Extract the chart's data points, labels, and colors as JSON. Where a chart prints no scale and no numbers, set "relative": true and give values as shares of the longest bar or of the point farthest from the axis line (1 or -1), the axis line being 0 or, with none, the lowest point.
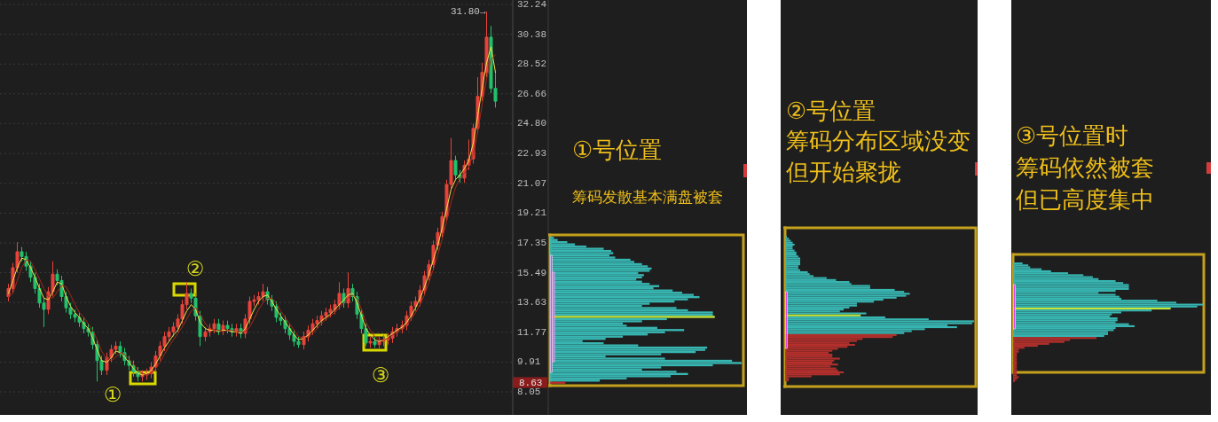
{
  "chart_data": [
    {
      "type": "candlestick",
      "categories": [
        null,
        null,
        null,
        null,
        null,
        null,
        null,
        null,
        null,
        null,
        null,
        null,
        null,
        null,
        null,
        null,
        null,
        null,
        null,
        null,
        null,
        null,
        null,
        null,
        null,
        null,
        null,
        null,
        null,
        null,
        null,
        null,
        null,
        null,
        null,
        null,
        null,
        null,
        null,
        null,
        null,
        null,
        null,
        null,
        null,
        null,
        null,
        null,
        null,
        null,
        null,
        null,
        null,
        null,
        null,
        null,
        null,
        null,
        null,
        null,
        null,
        null,
        null,
        null,
        null,
        null,
        null,
        null,
        null,
        null,
        null,
        null,
        null,
        null,
        null,
        null,
        null,
        null,
        null,
        null,
        null,
        null,
        null,
        null,
        null,
        null,
        null,
        null,
        null,
        null,
        null,
        null,
        null,
        null,
        null,
        null,
        null,
        null,
        null,
        null,
        null,
        null,
        null,
        null,
        null,
        null,
        null,
        null,
        null,
        null
      ],
      "ohlc": [
        [
          14.0,
          14.8,
          13.7,
          14.5
        ],
        [
          14.5,
          16.1,
          14.2,
          15.8
        ],
        [
          15.8,
          17.4,
          15.5,
          16.8
        ],
        [
          16.8,
          17.1,
          16.2,
          16.5
        ],
        [
          16.5,
          16.8,
          15.6,
          15.9
        ],
        [
          15.9,
          16.2,
          14.9,
          15.2
        ],
        [
          15.2,
          15.5,
          14.2,
          14.5
        ],
        [
          14.5,
          14.8,
          13.3,
          13.6
        ],
        [
          13.6,
          13.9,
          12.1,
          13.2
        ],
        [
          13.2,
          14.6,
          12.9,
          14.3
        ],
        [
          14.3,
          16.2,
          14.0,
          15.4
        ],
        [
          15.4,
          15.7,
          14.7,
          15.0
        ],
        [
          15.0,
          15.3,
          13.7,
          14.0
        ],
        [
          14.0,
          14.3,
          13.0,
          13.3
        ],
        [
          13.3,
          13.6,
          12.6,
          12.9
        ],
        [
          12.9,
          13.2,
          12.4,
          12.7
        ],
        [
          12.7,
          13.0,
          12.1,
          12.4
        ],
        [
          12.4,
          12.7,
          11.7,
          12.0
        ],
        [
          12.0,
          12.3,
          11.5,
          11.8
        ],
        [
          11.8,
          12.1,
          10.7,
          11.0
        ],
        [
          11.0,
          11.3,
          8.7,
          10.0
        ],
        [
          10.0,
          10.3,
          9.1,
          9.4
        ],
        [
          9.4,
          10.5,
          9.1,
          10.2
        ],
        [
          10.2,
          11.0,
          9.9,
          10.7
        ],
        [
          10.7,
          11.2,
          10.4,
          10.9
        ],
        [
          10.9,
          11.2,
          10.2,
          10.5
        ],
        [
          10.5,
          10.8,
          9.7,
          10.0
        ],
        [
          10.0,
          10.3,
          9.4,
          9.7
        ],
        [
          9.7,
          10.0,
          9.0,
          9.3
        ],
        [
          9.3,
          9.6,
          8.7,
          9.0
        ],
        [
          9.0,
          9.4,
          8.7,
          9.1
        ],
        [
          9.1,
          9.5,
          8.8,
          9.2
        ],
        [
          9.2,
          9.9,
          8.9,
          9.6
        ],
        [
          9.6,
          10.6,
          9.3,
          10.3
        ],
        [
          10.3,
          11.2,
          10.0,
          10.9
        ],
        [
          10.9,
          11.8,
          10.6,
          11.5
        ],
        [
          11.5,
          12.1,
          11.2,
          11.8
        ],
        [
          11.8,
          12.4,
          11.5,
          12.1
        ],
        [
          12.1,
          12.9,
          11.8,
          12.6
        ],
        [
          12.6,
          13.8,
          12.3,
          13.5
        ],
        [
          13.5,
          14.9,
          13.2,
          14.2
        ],
        [
          14.2,
          14.5,
          13.6,
          13.9
        ],
        [
          13.9,
          14.2,
          12.5,
          12.8
        ],
        [
          12.8,
          13.1,
          10.9,
          11.5
        ],
        [
          11.5,
          12.1,
          11.2,
          11.8
        ],
        [
          11.8,
          12.3,
          11.5,
          12.0
        ],
        [
          12.0,
          12.6,
          11.7,
          12.3
        ],
        [
          12.3,
          12.6,
          11.6,
          11.9
        ],
        [
          11.9,
          12.5,
          11.6,
          12.2
        ],
        [
          12.2,
          12.5,
          11.7,
          12.0
        ],
        [
          12.0,
          12.3,
          11.5,
          11.8
        ],
        [
          11.8,
          12.3,
          11.5,
          12.0
        ],
        [
          12.0,
          12.3,
          11.4,
          11.7
        ],
        [
          11.7,
          12.9,
          11.4,
          12.6
        ],
        [
          12.6,
          14.0,
          12.3,
          13.7
        ],
        [
          13.7,
          14.1,
          13.4,
          13.8
        ],
        [
          13.8,
          14.3,
          13.5,
          14.0
        ],
        [
          14.0,
          14.8,
          13.7,
          14.3
        ],
        [
          14.3,
          14.6,
          13.5,
          13.8
        ],
        [
          13.8,
          14.1,
          13.1,
          13.4
        ],
        [
          13.4,
          13.7,
          12.4,
          12.7
        ],
        [
          12.7,
          13.0,
          12.2,
          12.5
        ],
        [
          12.5,
          12.8,
          11.7,
          12.0
        ],
        [
          12.0,
          12.3,
          11.3,
          11.6
        ],
        [
          11.6,
          11.9,
          10.9,
          11.2
        ],
        [
          11.2,
          11.5,
          10.8,
          11.0
        ],
        [
          11.0,
          11.8,
          10.7,
          11.5
        ],
        [
          11.5,
          12.2,
          11.2,
          11.9
        ],
        [
          11.9,
          12.6,
          11.6,
          12.3
        ],
        [
          12.3,
          12.8,
          12.0,
          12.5
        ],
        [
          12.5,
          13.1,
          12.2,
          12.8
        ],
        [
          12.8,
          13.3,
          12.5,
          13.0
        ],
        [
          13.0,
          13.5,
          12.7,
          13.2
        ],
        [
          13.2,
          13.8,
          12.9,
          13.5
        ],
        [
          13.5,
          14.9,
          13.2,
          14.2
        ],
        [
          14.2,
          14.5,
          13.3,
          13.6
        ],
        [
          13.6,
          15.5,
          13.3,
          14.5
        ],
        [
          14.5,
          14.8,
          13.7,
          14.0
        ],
        [
          14.0,
          14.3,
          12.6,
          12.9
        ],
        [
          12.9,
          13.2,
          11.7,
          12.0
        ],
        [
          12.0,
          12.3,
          10.9,
          11.1
        ],
        [
          11.1,
          11.5,
          10.8,
          11.2
        ],
        [
          11.2,
          11.5,
          10.8,
          11.0
        ],
        [
          11.0,
          11.5,
          10.7,
          11.2
        ],
        [
          11.2,
          11.6,
          10.9,
          11.3
        ],
        [
          11.3,
          11.7,
          11.0,
          11.4
        ],
        [
          11.4,
          12.1,
          11.1,
          11.8
        ],
        [
          11.8,
          12.3,
          11.5,
          12.0
        ],
        [
          12.0,
          12.5,
          11.7,
          12.2
        ],
        [
          12.2,
          13.1,
          11.9,
          12.8
        ],
        [
          12.8,
          13.7,
          12.5,
          13.4
        ],
        [
          13.4,
          14.0,
          13.1,
          13.7
        ],
        [
          13.7,
          14.7,
          13.4,
          14.4
        ],
        [
          14.4,
          15.6,
          14.1,
          15.3
        ],
        [
          15.3,
          16.3,
          15.0,
          16.0
        ],
        [
          16.0,
          17.5,
          15.7,
          17.2
        ],
        [
          17.2,
          18.3,
          16.9,
          18.0
        ],
        [
          18.0,
          19.3,
          17.7,
          19.0
        ],
        [
          19.0,
          21.3,
          18.7,
          21.0
        ],
        [
          21.0,
          23.9,
          20.7,
          22.5
        ],
        [
          22.5,
          22.8,
          21.3,
          21.6
        ],
        [
          21.6,
          21.9,
          21.1,
          21.4
        ],
        [
          21.4,
          22.5,
          21.1,
          22.2
        ],
        [
          22.2,
          23.8,
          21.9,
          22.6
        ],
        [
          22.6,
          24.8,
          22.3,
          24.5
        ],
        [
          24.5,
          27.7,
          24.2,
          26.5
        ],
        [
          26.5,
          28.6,
          26.2,
          28.0
        ],
        [
          28.0,
          31.8,
          27.7,
          30.2
        ],
        [
          30.2,
          30.9,
          26.7,
          27.0
        ],
        [
          27.0,
          28.0,
          25.8,
          26.2
        ]
      ],
      "colors": [
        "#e8433a",
        "#e8433a",
        "#e8433a",
        "#22c06a",
        "#22c06a",
        "#22c06a",
        "#22c06a",
        "#22c06a",
        "#22c06a",
        "#e8433a",
        "#e8433a",
        "#22c06a",
        "#22c06a",
        "#22c06a",
        "#22c06a",
        "#22c06a",
        "#22c06a",
        "#22c06a",
        "#22c06a",
        "#22c06a",
        "#22c06a",
        "#22c06a",
        "#e8433a",
        "#e8433a",
        "#e8433a",
        "#22c06a",
        "#22c06a",
        "#22c06a",
        "#22c06a",
        "#22c06a",
        "#e8433a",
        "#e8433a",
        "#e8433a",
        "#e8433a",
        "#e8433a",
        "#e8433a",
        "#e8433a",
        "#e8433a",
        "#e8433a",
        "#e8433a",
        "#e8433a",
        "#22c06a",
        "#22c06a",
        "#22c06a",
        "#e8433a",
        "#e8433a",
        "#e8433a",
        "#22c06a",
        "#e8433a",
        "#22c06a",
        "#22c06a",
        "#e8433a",
        "#22c06a",
        "#e8433a",
        "#e8433a",
        "#e8433a",
        "#e8433a",
        "#e8433a",
        "#22c06a",
        "#22c06a",
        "#22c06a",
        "#22c06a",
        "#22c06a",
        "#22c06a",
        "#22c06a",
        "#22c06a",
        "#e8433a",
        "#e8433a",
        "#e8433a",
        "#e8433a",
        "#e8433a",
        "#e8433a",
        "#e8433a",
        "#e8433a",
        "#e8433a",
        "#22c06a",
        "#e8433a",
        "#22c06a",
        "#22c06a",
        "#22c06a",
        "#22c06a",
        "#e8433a",
        "#22c06a",
        "#e8433a",
        "#e8433a",
        "#e8433a",
        "#e8433a",
        "#e8433a",
        "#e8433a",
        "#e8433a",
        "#e8433a",
        "#e8433a",
        "#e8433a",
        "#e8433a",
        "#e8433a",
        "#e8433a",
        "#e8433a",
        "#e8433a",
        "#e8433a",
        "#e8433a",
        "#22c06a",
        "#22c06a",
        "#e8433a",
        "#e8433a",
        "#e8433a",
        "#e8433a",
        "#e8433a",
        "#e8433a",
        "#22c06a",
        "#22c06a"
      ],
      "series": [
        {
          "type": "line",
          "color": "#f2e24a",
          "values": [
            14.2,
            15.0,
            15.8,
            16.4,
            16.3,
            15.8,
            15.2,
            14.5,
            13.9,
            13.8,
            14.3,
            14.9,
            14.8,
            14.0,
            13.4,
            13.0,
            12.7,
            12.3,
            12.0,
            11.4,
            10.7,
            10.0,
            9.9,
            10.2,
            10.6,
            10.5,
            10.2,
            9.9,
            9.5,
            9.2,
            9.1,
            9.2,
            9.4,
            9.8,
            10.3,
            10.8,
            11.2,
            11.6,
            11.9,
            12.5,
            13.1,
            13.5,
            13.2,
            12.4,
            12.0,
            11.9,
            11.9,
            11.8,
            11.9,
            11.9,
            11.8,
            11.8,
            11.7,
            12.0,
            12.6,
            13.2,
            13.7,
            14.0,
            14.1,
            13.7,
            13.2,
            12.8,
            12.4,
            12.0,
            11.6,
            11.3,
            11.4,
            11.6,
            11.9,
            12.2,
            12.5,
            12.7,
            12.9,
            13.2,
            13.5,
            13.8,
            14.1,
            14.2,
            13.6,
            12.8,
            12.0,
            11.6,
            11.3,
            11.2,
            11.3,
            11.5,
            11.7,
            11.9,
            12.1,
            12.4,
            12.8,
            13.3,
            13.9,
            14.6,
            15.4,
            16.3,
            17.2,
            18.3,
            19.5,
            20.7,
            21.3,
            21.6,
            22.0,
            22.5,
            23.6,
            25.3,
            27.0,
            28.6,
            29.6,
            28.0
          ]
        },
        {
          "type": "line",
          "color": "#a8281a",
          "values": [
            14.0,
            14.2,
            15.0,
            15.8,
            16.3,
            16.2,
            15.7,
            15.1,
            14.5,
            14.0,
            13.9,
            14.3,
            14.7,
            14.6,
            14.1,
            13.5,
            13.0,
            12.7,
            12.3,
            11.9,
            11.3,
            10.6,
            10.1,
            10.0,
            10.2,
            10.5,
            10.4,
            10.1,
            9.8,
            9.4,
            9.2,
            9.1,
            9.2,
            9.5,
            9.9,
            10.4,
            10.9,
            11.3,
            11.7,
            12.1,
            12.6,
            13.1,
            13.3,
            12.9,
            12.3,
            12.0,
            11.9,
            11.9,
            11.8,
            11.9,
            11.9,
            11.8,
            11.8,
            11.8,
            12.1,
            12.6,
            13.2,
            13.6,
            13.9,
            13.9,
            13.6,
            13.1,
            12.7,
            12.3,
            11.9,
            11.5,
            11.4,
            11.5,
            11.7,
            12.0,
            12.3,
            12.6,
            12.8,
            13.0,
            13.3,
            13.6,
            13.9,
            14.1,
            13.9,
            13.2,
            12.4,
            11.9,
            11.5,
            11.3,
            11.3,
            11.4,
            11.6,
            11.8,
            12.0,
            12.2,
            12.6,
            13.0,
            13.5,
            14.1,
            14.9,
            15.7,
            16.6,
            17.6,
            18.7,
            19.9,
            20.8,
            21.4,
            21.7,
            22.1,
            22.9,
            24.3,
            26.0,
            27.6,
            28.8,
            29.1
          ]
        }
      ],
      "ylim": [
        6.61,
        32.52
      ],
      "yticks": [
        8.05,
        9.91,
        11.77,
        13.63,
        15.49,
        17.35,
        19.21,
        21.07,
        22.93,
        {
          "value": 24.8,
          "label": "24.80"
        },
        26.66,
        28.52,
        30.38,
        32.24
      ],
      "grid": "y",
      "tick_labels": "y",
      "annotations": [
        "31.80→",
        "8.63",
        "①",
        "②",
        "③"
      ]
    },
    {
      "type": "bar",
      "orientation": "horizontal",
      "relative": true,
      "tick_labels": false,
      "title": "①号位置",
      "annotations": [
        "筹码发散基本满盘被套"
      ],
      "categories": [
        null,
        null,
        null,
        null,
        null,
        null,
        null,
        null,
        null,
        null,
        null,
        null,
        null,
        null,
        null,
        null,
        null,
        null,
        null,
        null,
        null,
        null,
        null,
        null,
        null,
        null,
        null,
        null,
        null,
        null,
        null,
        null,
        null,
        null,
        null,
        null,
        null,
        null,
        null,
        null,
        null,
        null,
        null,
        null,
        null,
        null,
        null,
        null,
        null,
        null,
        null,
        null,
        null,
        null,
        null,
        null,
        null,
        null,
        null,
        null,
        null,
        null,
        null,
        null,
        null,
        null,
        null
      ],
      "values": [
        0.02,
        0.04,
        0.09,
        0.13,
        0.19,
        0.28,
        0.32,
        0.33,
        0.31,
        0.34,
        0.42,
        0.44,
        0.48,
        0.51,
        0.53,
        0.52,
        0.46,
        0.49,
        0.48,
        0.45,
        0.48,
        0.52,
        0.57,
        0.54,
        0.64,
        0.69,
        0.75,
        0.78,
        0.72,
        0.65,
        0.52,
        0.48,
        0.66,
        0.72,
        0.85,
        0.85,
        0.86,
        0.61,
        0.48,
        0.38,
        0.4,
        0.56,
        0.7,
        0.6,
        0.51,
        0.38,
        0.29,
        0.17,
        0.28,
        0.46,
        0.82,
        0.81,
        0.76,
        0.58,
        0.29,
        0.6,
        0.95,
        1,
        0.85,
        0.58,
        0.48,
        0.66,
        0.72,
        0.63,
        0.4,
        0.26,
        0.08
      ],
      "colors": [
        "#38b6b2",
        "#38b6b2",
        "#38b6b2",
        "#38b6b2",
        "#38b6b2",
        "#38b6b2",
        "#38b6b2",
        "#38b6b2",
        "#38b6b2",
        "#38b6b2",
        "#38b6b2",
        "#38b6b2",
        "#38b6b2",
        "#38b6b2",
        "#38b6b2",
        "#38b6b2",
        "#38b6b2",
        "#38b6b2",
        "#38b6b2",
        "#38b6b2",
        "#38b6b2",
        "#38b6b2",
        "#38b6b2",
        "#38b6b2",
        "#38b6b2",
        "#38b6b2",
        "#38b6b2",
        "#38b6b2",
        "#38b6b2",
        "#38b6b2",
        "#38b6b2",
        "#38b6b2",
        "#38b6b2",
        "#38b6b2",
        "#38b6b2",
        "#38b6b2",
        "#c9e83a",
        "#38b6b2",
        "#38b6b2",
        "#38b6b2",
        "#38b6b2",
        "#38b6b2",
        "#38b6b2",
        "#38b6b2",
        "#38b6b2",
        "#38b6b2",
        "#38b6b2",
        "#38b6b2",
        "#38b6b2",
        "#38b6b2",
        "#38b6b2",
        "#38b6b2",
        "#38b6b2",
        "#38b6b2",
        "#38b6b2",
        "#38b6b2",
        "#38b6b2",
        "#38b6b2",
        "#38b6b2",
        "#38b6b2",
        "#38b6b2",
        "#38b6b2",
        "#38b6b2",
        "#38b6b2",
        "#38b6b2",
        "#38b6b2",
        "#b3302c"
      ]
    },
    {
      "type": "bar",
      "orientation": "horizontal",
      "relative": true,
      "tick_labels": false,
      "title": "②号位置",
      "annotations": [
        "筹码分布区域没变",
        "但开始聚拢"
      ],
      "categories": [
        null,
        null,
        null,
        null,
        null,
        null,
        null,
        null,
        null,
        null,
        null,
        null,
        null,
        null,
        null,
        null,
        null,
        null,
        null,
        null,
        null,
        null,
        null,
        null,
        null,
        null,
        null,
        null,
        null,
        null,
        null,
        null,
        null,
        null,
        null,
        null,
        null,
        null,
        null,
        null,
        null,
        null,
        null,
        null,
        null,
        null,
        null,
        null,
        null,
        null,
        null,
        null,
        null,
        null,
        null,
        null,
        null,
        null,
        null,
        null,
        null,
        null,
        null,
        null,
        null,
        null,
        null,
        null,
        null,
        null,
        null,
        null,
        null,
        null
      ],
      "values": [
        0.01,
        0.02,
        0.03,
        0.04,
        0.05,
        0.04,
        0.04,
        0.05,
        0.06,
        0.06,
        0.07,
        0.08,
        0.08,
        0.08,
        0.08,
        0.07,
        0.07,
        0.08,
        0.12,
        0.13,
        0.15,
        0.22,
        0.27,
        0.34,
        0.35,
        0.45,
        0.45,
        0.58,
        0.63,
        0.66,
        0.64,
        0.59,
        0.52,
        0.47,
        0.38,
        0.38,
        0.34,
        0.31,
        0.29,
        0.43,
        0.4,
        0.53,
        0.76,
        1,
        0.99,
        0.86,
        0.91,
        0.74,
        0.67,
        0.63,
        0.59,
        0.57,
        0.41,
        0.38,
        0.34,
        0.37,
        0.33,
        0.28,
        0.25,
        0.23,
        0.25,
        0.25,
        0.29,
        0.26,
        0.25,
        0.28,
        0.24,
        0.27,
        0.28,
        0.31,
        0.29,
        0.14,
        0.02,
        0.02
      ],
      "colors": [
        "#38b6b2",
        "#38b6b2",
        "#38b6b2",
        "#38b6b2",
        "#38b6b2",
        "#38b6b2",
        "#38b6b2",
        "#38b6b2",
        "#38b6b2",
        "#38b6b2",
        "#38b6b2",
        "#38b6b2",
        "#38b6b2",
        "#38b6b2",
        "#38b6b2",
        "#38b6b2",
        "#38b6b2",
        "#38b6b2",
        "#38b6b2",
        "#38b6b2",
        "#38b6b2",
        "#38b6b2",
        "#38b6b2",
        "#38b6b2",
        "#38b6b2",
        "#38b6b2",
        "#38b6b2",
        "#38b6b2",
        "#38b6b2",
        "#38b6b2",
        "#38b6b2",
        "#38b6b2",
        "#38b6b2",
        "#38b6b2",
        "#38b6b2",
        "#38b6b2",
        "#38b6b2",
        "#38b6b2",
        "#38b6b2",
        "#38b6b2",
        "#c9e83a",
        "#38b6b2",
        "#38b6b2",
        "#38b6b2",
        "#38b6b2",
        "#38b6b2",
        "#38b6b2",
        "#38b6b2",
        "#38b6b2",
        "#38b6b2",
        "#b3302c",
        "#b3302c",
        "#b3302c",
        "#b3302c",
        "#b3302c",
        "#b3302c",
        "#b3302c",
        "#b3302c",
        "#b3302c",
        "#b3302c",
        "#b3302c",
        "#b3302c",
        "#b3302c",
        "#b3302c",
        "#b3302c",
        "#b3302c",
        "#b3302c",
        "#b3302c",
        "#b3302c",
        "#b3302c",
        "#b3302c",
        "#b3302c",
        "#b3302c",
        "#b3302c"
      ]
    },
    {
      "type": "bar",
      "orientation": "horizontal",
      "relative": true,
      "tick_labels": false,
      "title": "③号位置时",
      "annotations": [
        "筹码依然被套",
        "但已高度集中"
      ],
      "categories": [
        null,
        null,
        null,
        null,
        null,
        null,
        null,
        null,
        null,
        null,
        null,
        null,
        null,
        null,
        null,
        null,
        null,
        null,
        null,
        null,
        null,
        null,
        null,
        null,
        null,
        null,
        null,
        null,
        null,
        null,
        null,
        null,
        null,
        null,
        null,
        null,
        null,
        null,
        null,
        null,
        null,
        null,
        null,
        null,
        null,
        null,
        null,
        null,
        null,
        null,
        null,
        null,
        null,
        null,
        null,
        null,
        null,
        null,
        null,
        null,
        null
      ],
      "values": [
        0.05,
        0.08,
        0.09,
        0.15,
        0.2,
        0.29,
        0.37,
        0.42,
        0.45,
        0.54,
        0.58,
        0.61,
        0.61,
        0.61,
        0.54,
        0.45,
        0.54,
        0.56,
        0.57,
        0.76,
        0.86,
        1,
        0.97,
        0.83,
        0.73,
        0.57,
        0.52,
        0.51,
        0.55,
        0.55,
        0.54,
        0.61,
        0.64,
        0.54,
        0.53,
        0.5,
        0.5,
        0.48,
        0.44,
        0.3,
        0.27,
        0.19,
        0.13,
        0.06,
        0.03,
        0.03,
        0.02,
        0.02,
        0.02,
        0.02,
        0.02,
        0.02,
        0.02,
        0.02,
        0.02,
        0.02,
        0.02,
        0.02,
        0.03,
        0.02,
        0.01
      ],
      "colors": [
        "#38b6b2",
        "#38b6b2",
        "#38b6b2",
        "#38b6b2",
        "#38b6b2",
        "#38b6b2",
        "#38b6b2",
        "#38b6b2",
        "#38b6b2",
        "#38b6b2",
        "#38b6b2",
        "#38b6b2",
        "#38b6b2",
        "#38b6b2",
        "#38b6b2",
        "#38b6b2",
        "#38b6b2",
        "#38b6b2",
        "#38b6b2",
        "#38b6b2",
        "#38b6b2",
        "#38b6b2",
        "#38b6b2",
        "#c9e83a",
        "#38b6b2",
        "#38b6b2",
        "#38b6b2",
        "#38b6b2",
        "#38b6b2",
        "#38b6b2",
        "#38b6b2",
        "#38b6b2",
        "#38b6b2",
        "#38b6b2",
        "#38b6b2",
        "#38b6b2",
        "#38b6b2",
        "#38b6b2",
        "#b3302c",
        "#b3302c",
        "#b3302c",
        "#b3302c",
        "#b3302c",
        "#b3302c",
        "#b3302c",
        "#b3302c",
        "#b3302c",
        "#b3302c",
        "#b3302c",
        "#b3302c",
        "#b3302c",
        "#b3302c",
        "#b3302c",
        "#b3302c",
        "#b3302c",
        "#b3302c",
        "#b3302c",
        "#b3302c",
        "#b3302c",
        "#b3302c",
        "#b3302c"
      ]
    }
  ]
}
